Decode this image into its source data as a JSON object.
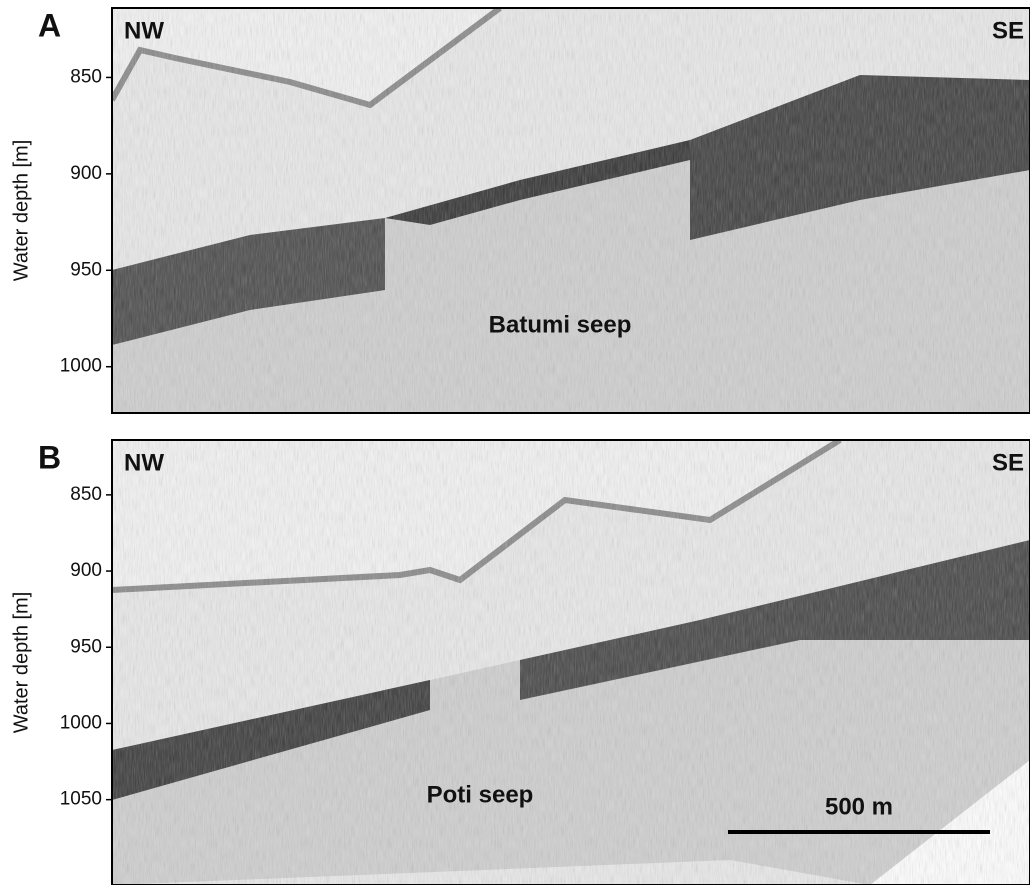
{
  "panels": [
    {
      "label": "A",
      "left": "NW",
      "right": "SE",
      "annotation": "Batumi seep",
      "ylabel": "Water depth [m]",
      "ylim": [
        1024,
        814
      ],
      "yticks": [
        850,
        900,
        950,
        1000
      ]
    },
    {
      "label": "B",
      "left": "NW",
      "right": "SE",
      "annotation": "Poti seep",
      "ylabel": "Water depth [m]",
      "ylim": [
        1106,
        814
      ],
      "yticks": [
        850,
        900,
        950,
        1000,
        1050
      ],
      "scale_bar": "500 m"
    }
  ]
}
